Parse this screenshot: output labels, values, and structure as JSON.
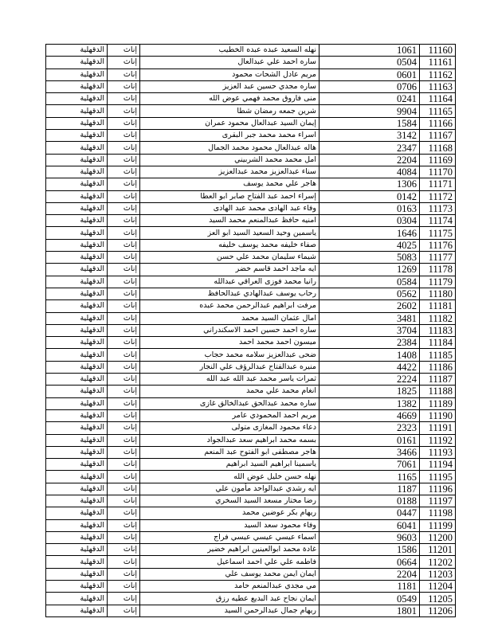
{
  "table": {
    "rows": [
      [
        "11160",
        "1061",
        "نهله السعيد عبده عبده الخطيب",
        "إناث",
        "الدقهلية"
      ],
      [
        "11161",
        "0504",
        "ساره احمد علي عبدالعال",
        "إناث",
        "الدقهلية"
      ],
      [
        "11162",
        "0601",
        "مريم عادل الشحات محمود",
        "إناث",
        "الدقهلية"
      ],
      [
        "11163",
        "0706",
        "ساره مجدي حسين عبد العزيز",
        "إناث",
        "الدقهلية"
      ],
      [
        "11164",
        "0241",
        "منى فاروق محمد فهمي عوض الله",
        "إناث",
        "الدقهلية"
      ],
      [
        "11165",
        "9904",
        "شرين جمعه رمضان شطا",
        "إناث",
        "الدقهلية"
      ],
      [
        "11166",
        "1584",
        "إيمان السيد عبدالعال محمود عمران",
        "إناث",
        "الدقهلية"
      ],
      [
        "11167",
        "3142",
        "اسراء محمد محمد جبر البقرى",
        "إناث",
        "الدقهلية"
      ],
      [
        "11168",
        "2347",
        "هاله عبدالعال محمود محمد الجمال",
        "إناث",
        "الدقهلية"
      ],
      [
        "11169",
        "2204",
        "امل محمد محمد الشربيني",
        "إناث",
        "الدقهلية"
      ],
      [
        "11170",
        "4084",
        "سناء عبدالعزيز محمد عبدالعزيز",
        "إناث",
        "الدقهلية"
      ],
      [
        "11171",
        "1306",
        "هاجر علي محمد يوسف",
        "إناث",
        "الدقهلية"
      ],
      [
        "11172",
        "0142",
        "إسراء احمد عبد الفتاح صابر ابو العطا",
        "إناث",
        "الدقهلية"
      ],
      [
        "11173",
        "0163",
        "وفاء عبد الهادى محمد عبد الهادى",
        "إناث",
        "الدقهلية"
      ],
      [
        "11174",
        "0304",
        "امنيه حافظ عبدالمنعم محمد السيد",
        "إناث",
        "الدقهلية"
      ],
      [
        "11175",
        "1646",
        "ياسمين وحيد السعيد السيد ابو العز",
        "إناث",
        "الدقهلية"
      ],
      [
        "11176",
        "4025",
        "صفاء خليفه محمد يوسف خليفه",
        "إناث",
        "الدقهلية"
      ],
      [
        "11177",
        "5083",
        "شيماء سليمان محمد علي حسن",
        "إناث",
        "الدقهلية"
      ],
      [
        "11178",
        "1269",
        "ايه ماجد احمد قاسم خضر",
        "إناث",
        "الدقهلية"
      ],
      [
        "11179",
        "0584",
        "رانيا محمد فوزى العراقي عبدالله",
        "إناث",
        "الدقهلية"
      ],
      [
        "11180",
        "0562",
        "رحاب يوسف عبدالهادي عبدالحافظ",
        "إناث",
        "الدقهلية"
      ],
      [
        "11181",
        "2602",
        "مرفت ابراهيم عبدالرحمن محمد عبده",
        "إناث",
        "الدقهلية"
      ],
      [
        "11182",
        "3481",
        "امال عثمان السيد محمد",
        "إناث",
        "الدقهلية"
      ],
      [
        "11183",
        "3704",
        "ساره احمد حسين احمد الاسكندراني",
        "إناث",
        "الدقهلية"
      ],
      [
        "11184",
        "2384",
        "ميسون احمد محمد احمد",
        "إناث",
        "الدقهلية"
      ],
      [
        "11185",
        "1408",
        "ضحى عبدالعزيز سلامه محمد حجاب",
        "إناث",
        "الدقهلية"
      ],
      [
        "11186",
        "4422",
        "منيره عبدالفتاح عبدالرؤف علي النجار",
        "إناث",
        "الدقهلية"
      ],
      [
        "11187",
        "2224",
        "ثمرات ياسر محمد عبد الله عبد الله",
        "إناث",
        "الدقهلية"
      ],
      [
        "11188",
        "1825",
        "انغام محمد علي محمد",
        "إناث",
        "الدقهلية"
      ],
      [
        "11189",
        "1382",
        "ساره محمد عبدالحق عبدالخالق غازى",
        "إناث",
        "الدقهلية"
      ],
      [
        "11190",
        "4669",
        "مريم احمد المحمودي عامر",
        "إناث",
        "الدقهلية"
      ],
      [
        "11191",
        "2323",
        "دعاء محمود المغازى متولى",
        "إناث",
        "الدقهلية"
      ],
      [
        "11192",
        "0161",
        "بسمه محمد ابراهيم سعد عبدالجواد",
        "إناث",
        "الدقهلية"
      ],
      [
        "11193",
        "3466",
        "هاجر مصطفى ابو الفتوح عبد المنعم",
        "إناث",
        "الدقهلية"
      ],
      [
        "11194",
        "7061",
        "ياسمينا ابراهيم السيد ابراهيم",
        "إناث",
        "الدقهلية"
      ],
      [
        "11195",
        "1165",
        "نهله حسن خليل عوض الله",
        "إناث",
        "الدقهلية"
      ],
      [
        "11196",
        "1187",
        "ايه رشدي عبدالواحد مأمون علي",
        "إناث",
        "الدقهلية"
      ],
      [
        "11197",
        "0188",
        "رضا مختار مسعد السيد السخري",
        "إناث",
        "الدقهلية"
      ],
      [
        "11198",
        "0447",
        "ريهام بكر عوضين محمد",
        "إناث",
        "الدقهلية"
      ],
      [
        "11199",
        "6041",
        "وفاء محمود سعد السيد",
        "إناث",
        "الدقهلية"
      ],
      [
        "11200",
        "9603",
        "اسماء عيسي عيسي عيسي فراج",
        "إناث",
        "الدقهلية"
      ],
      [
        "11201",
        "1586",
        "غادة محمد ابوالعينين ابراهيم خضير",
        "إناث",
        "الدقهلية"
      ],
      [
        "11202",
        "0664",
        "فاطمه علي علي احمد اسماعيل",
        "إناث",
        "الدقهلية"
      ],
      [
        "11203",
        "2204",
        "ايمان ايمن محمد يوسف علي",
        "إناث",
        "الدقهلية"
      ],
      [
        "11204",
        "1181",
        "مي مجدي عبدالمنعم حامد",
        "إناث",
        "الدقهلية"
      ],
      [
        "11205",
        "0549",
        "ايمان نجاح عبد البديع عطيه رزق",
        "إناث",
        "الدقهلية"
      ],
      [
        "11206",
        "1801",
        "ريهام جمال عبدالرحمن السيد",
        "إناث",
        "الدقهلية"
      ]
    ]
  }
}
